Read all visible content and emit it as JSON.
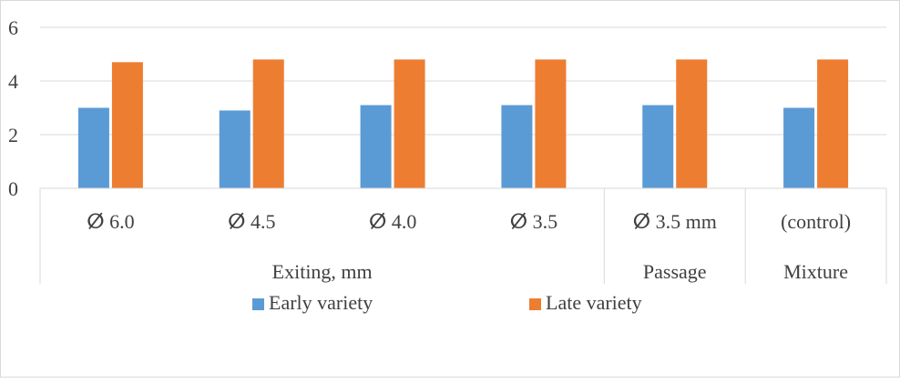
{
  "chart_data": {
    "type": "bar",
    "categories": [
      "ⵁ 6.0",
      "ⵁ 4.5",
      "ⵁ 4.0",
      "ⵁ 3.5",
      "ⵁ 3.5 mm",
      "(control)"
    ],
    "groups": [
      {
        "label": "Exiting, mm",
        "span": [
          0,
          3
        ]
      },
      {
        "label": "Passage",
        "span": [
          4,
          4
        ]
      },
      {
        "label": "Mixture",
        "span": [
          5,
          5
        ]
      }
    ],
    "series": [
      {
        "name": "Early variety",
        "color": "#5B9BD5",
        "values": [
          3.0,
          2.9,
          3.1,
          3.1,
          3.1,
          3.0
        ]
      },
      {
        "name": "Late variety",
        "color": "#ED7D31",
        "values": [
          4.7,
          4.8,
          4.8,
          4.8,
          4.8,
          4.8
        ]
      }
    ],
    "ylim": [
      0,
      6
    ],
    "yticks": [
      "0",
      "2",
      "4",
      "6"
    ],
    "ytick_values": [
      0,
      2,
      4,
      6
    ],
    "grid": true,
    "legend_position": "bottom",
    "title": "",
    "xlabel": "",
    "ylabel": ""
  }
}
